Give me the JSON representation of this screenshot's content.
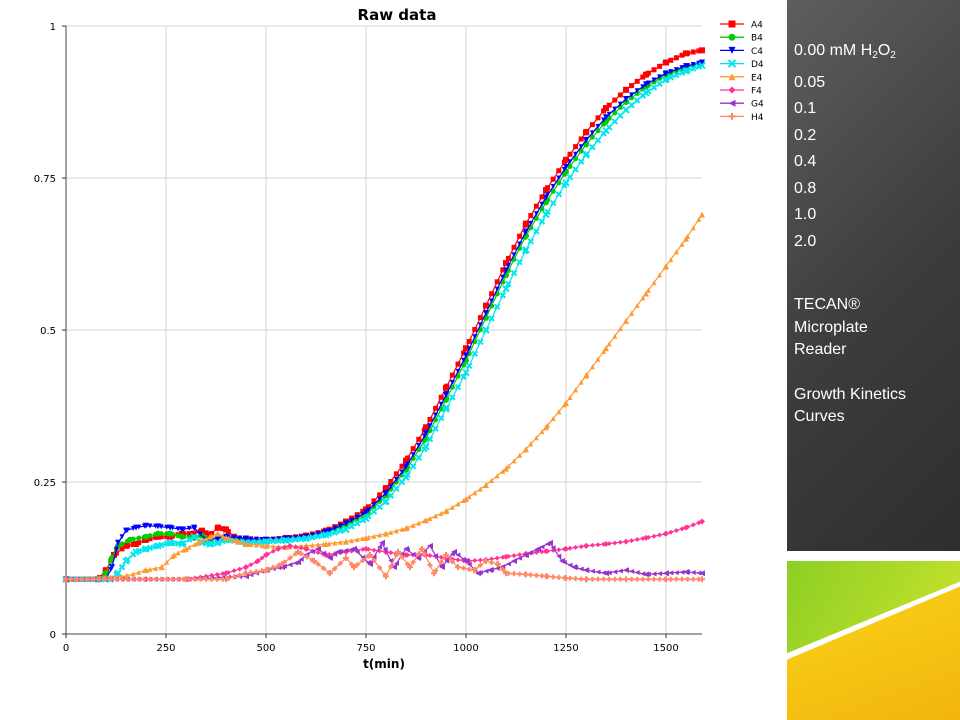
{
  "chart_data": {
    "type": "line",
    "title": "Raw data",
    "xlabel": "t(min)",
    "ylabel": "",
    "xlim": [
      0,
      1590
    ],
    "ylim": [
      0,
      1
    ],
    "xticks": [
      "0",
      "250",
      "500",
      "750",
      "1000",
      "1250",
      "1500"
    ],
    "yticks": [
      "0",
      "0.25",
      "0.5",
      "0.75",
      "1"
    ],
    "grid": true,
    "legend_position": "top-right",
    "series": [
      {
        "name": "A4",
        "color": "#ff0000",
        "marker": "square",
        "points": [
          [
            0,
            0.09
          ],
          [
            80,
            0.09
          ],
          [
            100,
            0.105
          ],
          [
            120,
            0.13
          ],
          [
            150,
            0.145
          ],
          [
            175,
            0.148
          ],
          [
            200,
            0.155
          ],
          [
            230,
            0.16
          ],
          [
            260,
            0.16
          ],
          [
            290,
            0.165
          ],
          [
            320,
            0.165
          ],
          [
            340,
            0.17
          ],
          [
            360,
            0.163
          ],
          [
            380,
            0.175
          ],
          [
            400,
            0.172
          ],
          [
            420,
            0.16
          ],
          [
            450,
            0.155
          ],
          [
            500,
            0.155
          ],
          [
            550,
            0.158
          ],
          [
            600,
            0.162
          ],
          [
            650,
            0.17
          ],
          [
            700,
            0.185
          ],
          [
            750,
            0.205
          ],
          [
            800,
            0.24
          ],
          [
            850,
            0.285
          ],
          [
            900,
            0.34
          ],
          [
            950,
            0.405
          ],
          [
            1000,
            0.47
          ],
          [
            1050,
            0.54
          ],
          [
            1100,
            0.61
          ],
          [
            1150,
            0.675
          ],
          [
            1200,
            0.73
          ],
          [
            1250,
            0.78
          ],
          [
            1300,
            0.825
          ],
          [
            1350,
            0.865
          ],
          [
            1400,
            0.895
          ],
          [
            1450,
            0.92
          ],
          [
            1500,
            0.94
          ],
          [
            1550,
            0.955
          ],
          [
            1590,
            0.96
          ]
        ]
      },
      {
        "name": "B4",
        "color": "#00cc00",
        "marker": "circle",
        "points": [
          [
            0,
            0.09
          ],
          [
            80,
            0.09
          ],
          [
            100,
            0.1
          ],
          [
            115,
            0.125
          ],
          [
            130,
            0.145
          ],
          [
            160,
            0.155
          ],
          [
            200,
            0.16
          ],
          [
            230,
            0.165
          ],
          [
            260,
            0.165
          ],
          [
            290,
            0.16
          ],
          [
            320,
            0.158
          ],
          [
            340,
            0.162
          ],
          [
            360,
            0.155
          ],
          [
            380,
            0.16
          ],
          [
            400,
            0.158
          ],
          [
            450,
            0.155
          ],
          [
            500,
            0.155
          ],
          [
            550,
            0.157
          ],
          [
            600,
            0.16
          ],
          [
            650,
            0.168
          ],
          [
            700,
            0.18
          ],
          [
            750,
            0.197
          ],
          [
            800,
            0.228
          ],
          [
            850,
            0.27
          ],
          [
            900,
            0.322
          ],
          [
            950,
            0.385
          ],
          [
            1000,
            0.45
          ],
          [
            1050,
            0.52
          ],
          [
            1100,
            0.59
          ],
          [
            1150,
            0.655
          ],
          [
            1200,
            0.71
          ],
          [
            1250,
            0.76
          ],
          [
            1300,
            0.805
          ],
          [
            1350,
            0.843
          ],
          [
            1400,
            0.875
          ],
          [
            1450,
            0.9
          ],
          [
            1500,
            0.92
          ],
          [
            1550,
            0.932
          ],
          [
            1590,
            0.94
          ]
        ]
      },
      {
        "name": "C4",
        "color": "#0000ff",
        "marker": "triangle-down",
        "points": [
          [
            0,
            0.09
          ],
          [
            100,
            0.09
          ],
          [
            115,
            0.11
          ],
          [
            130,
            0.15
          ],
          [
            150,
            0.17
          ],
          [
            175,
            0.175
          ],
          [
            200,
            0.178
          ],
          [
            230,
            0.177
          ],
          [
            260,
            0.175
          ],
          [
            290,
            0.172
          ],
          [
            320,
            0.175
          ],
          [
            350,
            0.155
          ],
          [
            380,
            0.157
          ],
          [
            400,
            0.16
          ],
          [
            450,
            0.157
          ],
          [
            500,
            0.155
          ],
          [
            550,
            0.157
          ],
          [
            600,
            0.16
          ],
          [
            650,
            0.168
          ],
          [
            700,
            0.182
          ],
          [
            750,
            0.2
          ],
          [
            800,
            0.232
          ],
          [
            850,
            0.275
          ],
          [
            900,
            0.33
          ],
          [
            950,
            0.393
          ],
          [
            1000,
            0.458
          ],
          [
            1050,
            0.528
          ],
          [
            1100,
            0.598
          ],
          [
            1150,
            0.662
          ],
          [
            1200,
            0.718
          ],
          [
            1250,
            0.768
          ],
          [
            1300,
            0.812
          ],
          [
            1350,
            0.85
          ],
          [
            1400,
            0.88
          ],
          [
            1450,
            0.904
          ],
          [
            1500,
            0.922
          ],
          [
            1550,
            0.934
          ],
          [
            1590,
            0.94
          ]
        ]
      },
      {
        "name": "D4",
        "color": "#00e5ee",
        "marker": "x",
        "points": [
          [
            0,
            0.09
          ],
          [
            110,
            0.09
          ],
          [
            130,
            0.1
          ],
          [
            150,
            0.12
          ],
          [
            175,
            0.135
          ],
          [
            200,
            0.14
          ],
          [
            230,
            0.145
          ],
          [
            260,
            0.15
          ],
          [
            290,
            0.148
          ],
          [
            320,
            0.16
          ],
          [
            340,
            0.15
          ],
          [
            360,
            0.148
          ],
          [
            380,
            0.15
          ],
          [
            400,
            0.155
          ],
          [
            450,
            0.15
          ],
          [
            500,
            0.152
          ],
          [
            550,
            0.154
          ],
          [
            600,
            0.157
          ],
          [
            650,
            0.163
          ],
          [
            700,
            0.172
          ],
          [
            750,
            0.19
          ],
          [
            800,
            0.218
          ],
          [
            850,
            0.258
          ],
          [
            900,
            0.308
          ],
          [
            950,
            0.37
          ],
          [
            1000,
            0.43
          ],
          [
            1050,
            0.5
          ],
          [
            1100,
            0.568
          ],
          [
            1150,
            0.632
          ],
          [
            1200,
            0.69
          ],
          [
            1250,
            0.742
          ],
          [
            1300,
            0.788
          ],
          [
            1350,
            0.828
          ],
          [
            1400,
            0.862
          ],
          [
            1450,
            0.89
          ],
          [
            1500,
            0.912
          ],
          [
            1550,
            0.926
          ],
          [
            1590,
            0.935
          ]
        ]
      },
      {
        "name": "E4",
        "color": "#ff9933",
        "marker": "triangle-up",
        "points": [
          [
            0,
            0.09
          ],
          [
            150,
            0.095
          ],
          [
            200,
            0.105
          ],
          [
            240,
            0.11
          ],
          [
            270,
            0.13
          ],
          [
            300,
            0.14
          ],
          [
            330,
            0.15
          ],
          [
            360,
            0.16
          ],
          [
            380,
            0.165
          ],
          [
            400,
            0.158
          ],
          [
            430,
            0.152
          ],
          [
            450,
            0.148
          ],
          [
            500,
            0.145
          ],
          [
            550,
            0.143
          ],
          [
            600,
            0.145
          ],
          [
            650,
            0.148
          ],
          [
            700,
            0.152
          ],
          [
            750,
            0.158
          ],
          [
            800,
            0.165
          ],
          [
            850,
            0.174
          ],
          [
            900,
            0.187
          ],
          [
            950,
            0.202
          ],
          [
            1000,
            0.222
          ],
          [
            1050,
            0.245
          ],
          [
            1100,
            0.272
          ],
          [
            1150,
            0.304
          ],
          [
            1200,
            0.34
          ],
          [
            1250,
            0.38
          ],
          [
            1300,
            0.425
          ],
          [
            1350,
            0.47
          ],
          [
            1400,
            0.515
          ],
          [
            1450,
            0.56
          ],
          [
            1500,
            0.605
          ],
          [
            1550,
            0.65
          ],
          [
            1590,
            0.69
          ]
        ]
      },
      {
        "name": "F4",
        "color": "#ff3399",
        "marker": "diamond",
        "points": [
          [
            0,
            0.09
          ],
          [
            200,
            0.09
          ],
          [
            300,
            0.09
          ],
          [
            400,
            0.1
          ],
          [
            450,
            0.11
          ],
          [
            480,
            0.12
          ],
          [
            500,
            0.13
          ],
          [
            530,
            0.14
          ],
          [
            560,
            0.145
          ],
          [
            600,
            0.14
          ],
          [
            650,
            0.13
          ],
          [
            700,
            0.135
          ],
          [
            750,
            0.14
          ],
          [
            800,
            0.135
          ],
          [
            850,
            0.13
          ],
          [
            900,
            0.13
          ],
          [
            950,
            0.125
          ],
          [
            1000,
            0.12
          ],
          [
            1050,
            0.122
          ],
          [
            1100,
            0.127
          ],
          [
            1150,
            0.132
          ],
          [
            1200,
            0.136
          ],
          [
            1250,
            0.14
          ],
          [
            1300,
            0.145
          ],
          [
            1350,
            0.148
          ],
          [
            1400,
            0.152
          ],
          [
            1450,
            0.158
          ],
          [
            1500,
            0.165
          ],
          [
            1550,
            0.175
          ],
          [
            1590,
            0.185
          ]
        ]
      },
      {
        "name": "G4",
        "color": "#9933cc",
        "marker": "triangle-left",
        "points": [
          [
            0,
            0.09
          ],
          [
            300,
            0.09
          ],
          [
            450,
            0.095
          ],
          [
            500,
            0.105
          ],
          [
            540,
            0.11
          ],
          [
            580,
            0.118
          ],
          [
            600,
            0.13
          ],
          [
            630,
            0.14
          ],
          [
            660,
            0.125
          ],
          [
            680,
            0.135
          ],
          [
            720,
            0.14
          ],
          [
            760,
            0.115
          ],
          [
            790,
            0.15
          ],
          [
            820,
            0.11
          ],
          [
            850,
            0.14
          ],
          [
            880,
            0.125
          ],
          [
            910,
            0.145
          ],
          [
            940,
            0.11
          ],
          [
            970,
            0.135
          ],
          [
            1000,
            0.12
          ],
          [
            1030,
            0.1
          ],
          [
            1060,
            0.105
          ],
          [
            1090,
            0.11
          ],
          [
            1120,
            0.12
          ],
          [
            1150,
            0.13
          ],
          [
            1180,
            0.14
          ],
          [
            1210,
            0.15
          ],
          [
            1240,
            0.12
          ],
          [
            1270,
            0.11
          ],
          [
            1300,
            0.105
          ],
          [
            1350,
            0.1
          ],
          [
            1400,
            0.105
          ],
          [
            1450,
            0.098
          ],
          [
            1500,
            0.1
          ],
          [
            1550,
            0.102
          ],
          [
            1590,
            0.1
          ]
        ]
      },
      {
        "name": "H4",
        "color": "#ff8866",
        "marker": "plus",
        "points": [
          [
            0,
            0.09
          ],
          [
            300,
            0.09
          ],
          [
            400,
            0.09
          ],
          [
            450,
            0.1
          ],
          [
            500,
            0.105
          ],
          [
            540,
            0.115
          ],
          [
            580,
            0.135
          ],
          [
            620,
            0.12
          ],
          [
            660,
            0.1
          ],
          [
            700,
            0.125
          ],
          [
            720,
            0.11
          ],
          [
            760,
            0.13
          ],
          [
            800,
            0.095
          ],
          [
            830,
            0.135
          ],
          [
            860,
            0.11
          ],
          [
            890,
            0.14
          ],
          [
            920,
            0.1
          ],
          [
            950,
            0.13
          ],
          [
            980,
            0.11
          ],
          [
            1020,
            0.105
          ],
          [
            1050,
            0.12
          ],
          [
            1080,
            0.115
          ],
          [
            1100,
            0.1
          ],
          [
            1150,
            0.098
          ],
          [
            1200,
            0.095
          ],
          [
            1250,
            0.092
          ],
          [
            1300,
            0.09
          ],
          [
            1400,
            0.09
          ],
          [
            1500,
            0.09
          ],
          [
            1590,
            0.09
          ]
        ]
      }
    ]
  },
  "panel": {
    "legend": [
      {
        "value": "0.00 mM H",
        "h2o2": true
      },
      {
        "value": "0.05"
      },
      {
        "value": "0.1"
      },
      {
        "value": "0.2"
      },
      {
        "value": "0.4"
      },
      {
        "value": "0.8"
      },
      {
        "value": "1.0"
      },
      {
        "value": "2.0"
      }
    ],
    "sub_2": "2",
    "o_letter": "O",
    "notes": [
      "TECAN®",
      "Microplate",
      "Reader",
      "",
      "Growth Kinetics",
      "Curves"
    ]
  }
}
